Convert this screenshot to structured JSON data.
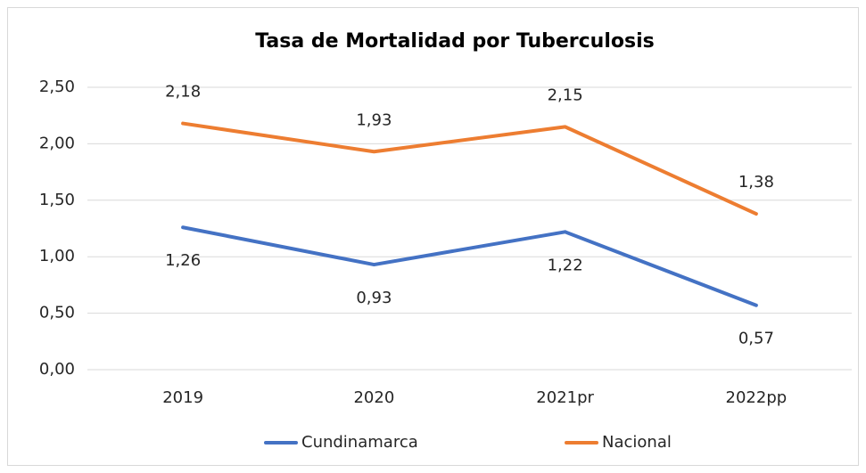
{
  "chart_data": {
    "type": "line",
    "title": "Tasa de Mortalidad por Tuberculosis",
    "categories": [
      "2019",
      "2020",
      "2021pr",
      "2022pp"
    ],
    "series": [
      {
        "name": "Cundinamarca",
        "color": "#4472c4",
        "values": [
          1.26,
          0.93,
          1.22,
          0.57
        ],
        "value_labels": [
          "1,26",
          "0,93",
          "1,22",
          "0,57"
        ],
        "label_position": "below"
      },
      {
        "name": "Nacional",
        "color": "#ed7d31",
        "values": [
          2.18,
          1.93,
          2.15,
          1.38
        ],
        "value_labels": [
          "2,18",
          "1,93",
          "2,15",
          "1,38"
        ],
        "label_position": "above"
      }
    ],
    "ylim": [
      0,
      2.5
    ],
    "yticks": [
      {
        "value": 0,
        "label": "0,00"
      },
      {
        "value": 0.5,
        "label": "0,50"
      },
      {
        "value": 1,
        "label": "1,00"
      },
      {
        "value": 1.5,
        "label": "1,50"
      },
      {
        "value": 2,
        "label": "2,00"
      },
      {
        "value": 2.5,
        "label": "2,50"
      }
    ],
    "grid": true,
    "legend": "bottom"
  }
}
